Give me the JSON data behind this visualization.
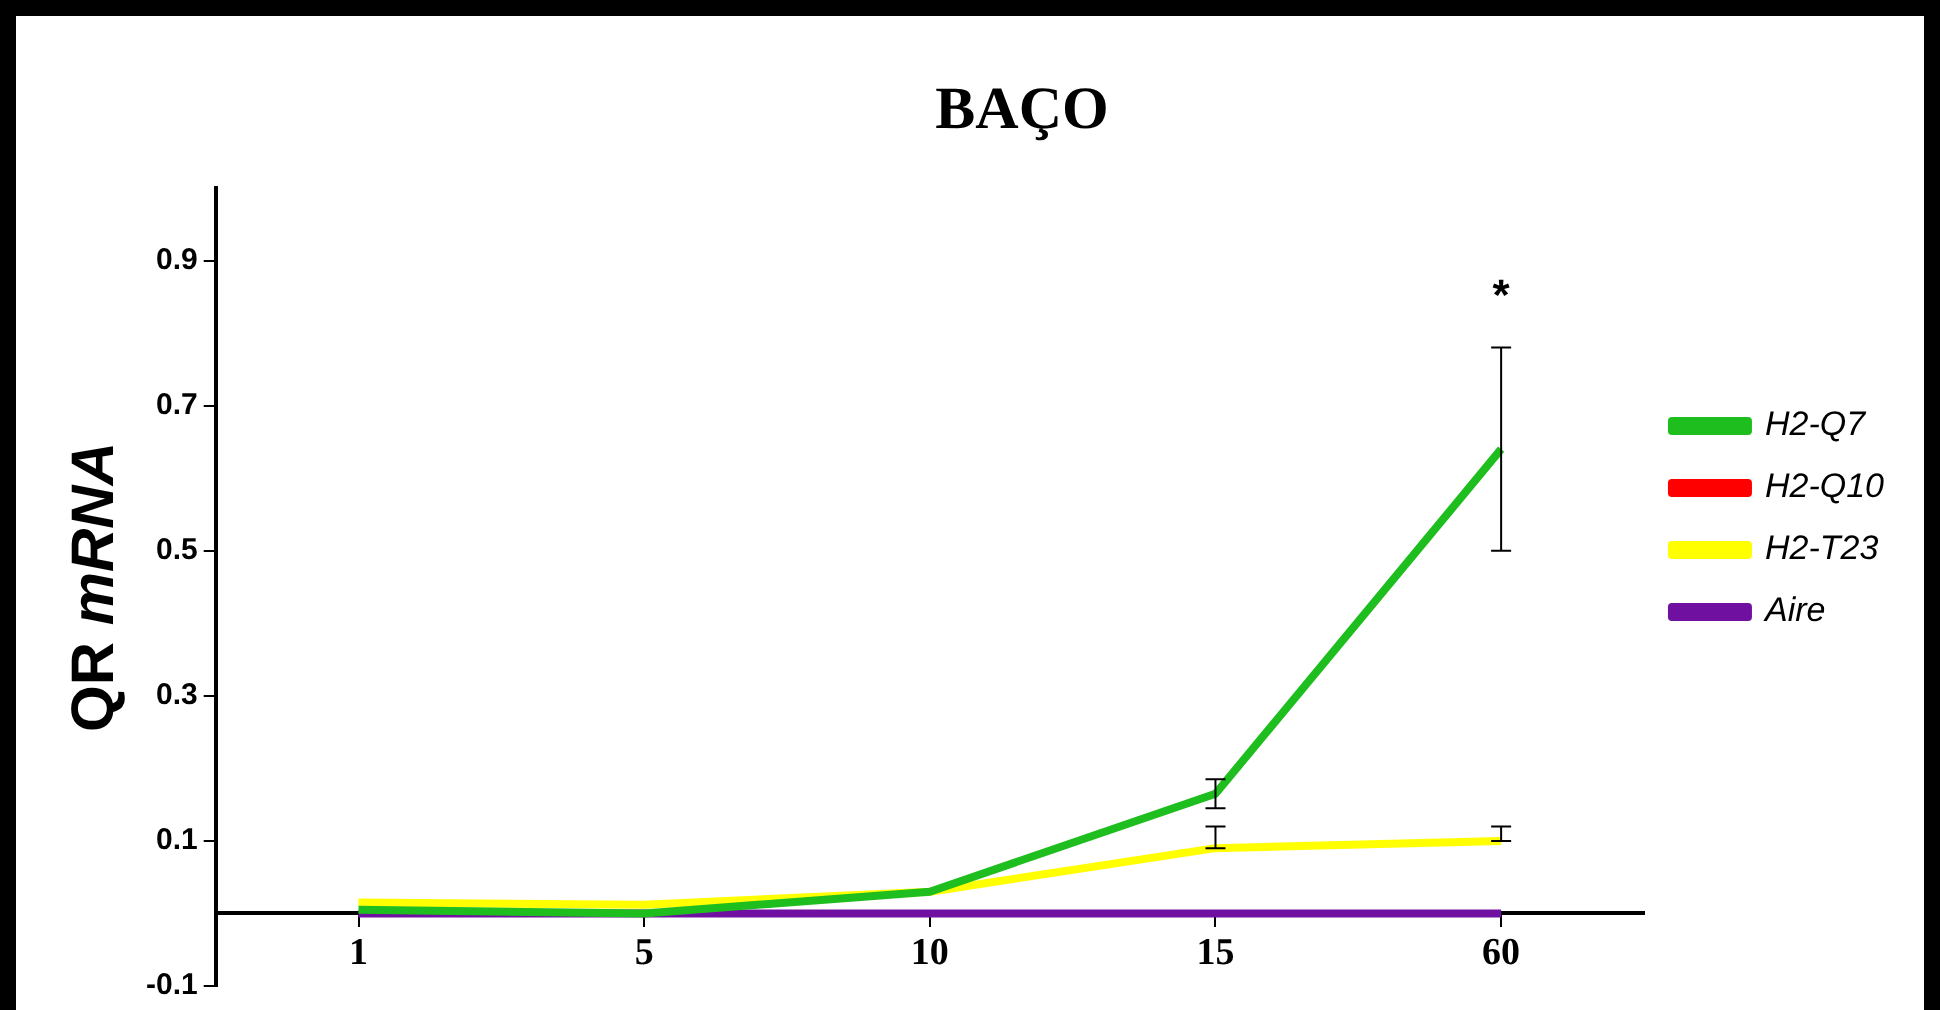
{
  "chart_data": {
    "type": "line",
    "title": "BAÇO",
    "ylabel": "QR mRNA",
    "categories": [
      "1",
      "5",
      "10",
      "15",
      "60"
    ],
    "series": [
      {
        "name": "H2-Q7",
        "color": "#1fbe1f",
        "values": [
          0.005,
          0.0,
          0.03,
          0.165,
          0.64
        ],
        "errors": [
          null,
          null,
          null,
          0.02,
          0.14
        ]
      },
      {
        "name": "H2-Q10",
        "color": "#ff0000",
        "values": [
          null,
          null,
          null,
          null,
          null
        ]
      },
      {
        "name": "H2-T23",
        "color": "#ffff00",
        "values": [
          0.015,
          0.012,
          0.03,
          0.09,
          0.1
        ],
        "errors": [
          null,
          null,
          null,
          [
            0.09,
            0.12
          ],
          [
            0.1,
            0.12
          ]
        ]
      },
      {
        "name": "Aire",
        "color": "#7010a0",
        "values": [
          0.0,
          0.0,
          0.0,
          0.0,
          0.0
        ]
      }
    ],
    "ylim": [
      -0.1,
      1.0
    ],
    "yticks": [
      -0.1,
      0.1,
      0.3,
      0.5,
      0.7,
      0.9
    ],
    "grid": false,
    "legend": "right",
    "annotations": [
      "*"
    ]
  }
}
